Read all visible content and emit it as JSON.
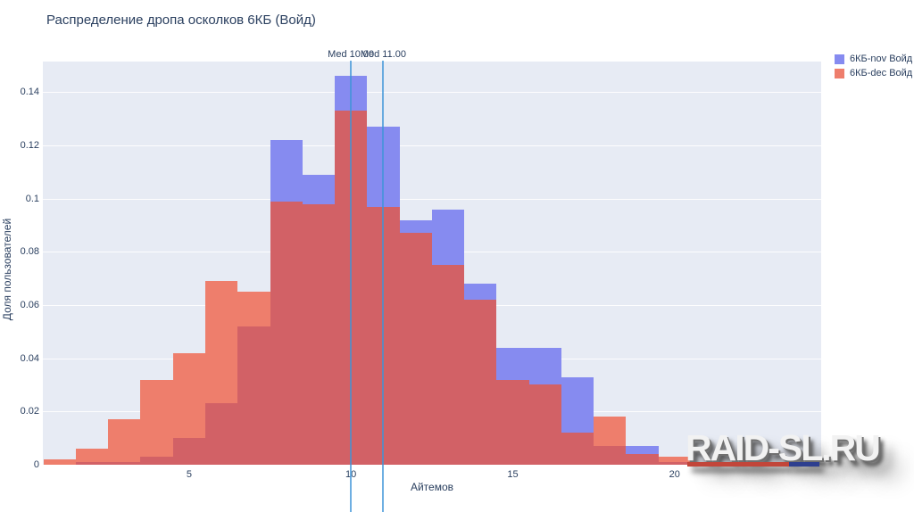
{
  "chart_data": {
    "type": "histogram",
    "overlay": true,
    "title": "Распределение дропа осколков 6КБ (Войд)",
    "xlabel": "Айтемов",
    "ylabel": "Доля пользователей",
    "x_range": [
      0.48,
      24.53
    ],
    "y_range": [
      0,
      0.1515
    ],
    "bin_width": 1,
    "bin_centers": [
      1,
      2,
      3,
      4,
      5,
      6,
      7,
      8,
      9,
      10,
      11,
      12,
      13,
      14,
      15,
      16,
      17,
      18,
      19,
      20,
      21,
      22,
      23,
      24
    ],
    "series": [
      {
        "name": "6КБ-nov Войд",
        "color": "#868BF0",
        "values": [
          0,
          0.001,
          0.001,
          0.003,
          0.01,
          0.023,
          0.052,
          0.122,
          0.109,
          0.146,
          0.127,
          0.092,
          0.096,
          0.068,
          0.044,
          0.044,
          0.033,
          0.007,
          0.007,
          0.001,
          0,
          0,
          0,
          0
        ]
      },
      {
        "name": "6КБ-dec Войд",
        "color": "#EE7E6C",
        "values": [
          0.002,
          0.006,
          0.017,
          0.032,
          0.042,
          0.069,
          0.065,
          0.099,
          0.098,
          0.133,
          0.097,
          0.087,
          0.075,
          0.062,
          0.032,
          0.03,
          0.012,
          0.018,
          0.004,
          0.003,
          0,
          0,
          0,
          0
        ]
      }
    ],
    "overlap_color": "#D26166",
    "medians": [
      {
        "label": "Med 10.00",
        "x": 10
      },
      {
        "label": "Med 11.00",
        "x": 11
      }
    ],
    "median_line_color": "#3E94D8",
    "x_ticks": [
      {
        "v": 5,
        "label": "5"
      },
      {
        "v": 10,
        "label": "10"
      },
      {
        "v": 15,
        "label": "15"
      },
      {
        "v": 20,
        "label": "20"
      }
    ],
    "y_ticks": [
      {
        "v": 0,
        "label": "0"
      },
      {
        "v": 0.02,
        "label": "0.02"
      },
      {
        "v": 0.04,
        "label": "0.04"
      },
      {
        "v": 0.06,
        "label": "0.06"
      },
      {
        "v": 0.08,
        "label": "0.08"
      },
      {
        "v": 0.1,
        "label": "0.1"
      },
      {
        "v": 0.12,
        "label": "0.12"
      },
      {
        "v": 0.14,
        "label": "0.14"
      }
    ],
    "plot_bg": "#E7EBF4",
    "grid_color": "#FFFFFF",
    "legend_position": "top-right"
  },
  "watermark": {
    "text": "RAID-SL.RU",
    "underline_red": "#C2463A",
    "underline_blue": "#2E3F8F"
  }
}
